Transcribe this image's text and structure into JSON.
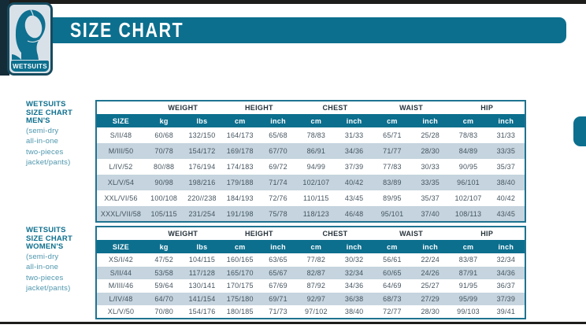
{
  "header": {
    "title": "SIZE CHART",
    "logo": {
      "label": "WETSUITS",
      "icon": "wetsuit-hood-icon"
    }
  },
  "colors": {
    "accent_teal": "#0c6f8e",
    "row_stripe": "#c5d4de",
    "rule_black": "#1d1d1b",
    "badge_fill": "#d9e1e8"
  },
  "sections": [
    {
      "title_lines": [
        "WETSUITS",
        "SIZE CHART",
        "MEN'S"
      ],
      "subtitle_lines": [
        "(semi-dry",
        "all-in-one",
        "two-pieces",
        "jacket/pants)"
      ],
      "table": {
        "group_headers": [
          {
            "label": "",
            "span": 1
          },
          {
            "label": "WEIGHT",
            "span": 2
          },
          {
            "label": "HEIGHT",
            "span": 2
          },
          {
            "label": "CHEST",
            "span": 2
          },
          {
            "label": "WAIST",
            "span": 2
          },
          {
            "label": "HIP",
            "span": 2
          }
        ],
        "columns": [
          "SIZE",
          "kg",
          "lbs",
          "cm",
          "inch",
          "cm",
          "inch",
          "cm",
          "inch",
          "cm",
          "inch"
        ],
        "rows": [
          [
            "S/II/48",
            "60/68",
            "132/150",
            "164/173",
            "65/68",
            "78/83",
            "31/33",
            "65/71",
            "25/28",
            "78/83",
            "31/33"
          ],
          [
            "M/III/50",
            "70/78",
            "154/172",
            "169/178",
            "67/70",
            "86/91",
            "34/36",
            "71/77",
            "28/30",
            "84/89",
            "33/35"
          ],
          [
            "L/IV/52",
            "80//88",
            "176/194",
            "174/183",
            "69/72",
            "94/99",
            "37/39",
            "77/83",
            "30/33",
            "90/95",
            "35/37"
          ],
          [
            "XL/V/54",
            "90/98",
            "198/216",
            "179/188",
            "71/74",
            "102/107",
            "40/42",
            "83/89",
            "33/35",
            "96/101",
            "38/40"
          ],
          [
            "XXL/VI/56",
            "100/108",
            "220//238",
            "184/193",
            "72/76",
            "110/115",
            "43/45",
            "89/95",
            "35/37",
            "102/107",
            "40/42"
          ],
          [
            "XXXL/VII/58",
            "105/115",
            "231/254",
            "191/198",
            "75/78",
            "118/123",
            "46/48",
            "95/101",
            "37/40",
            "108/113",
            "43/45"
          ]
        ]
      }
    },
    {
      "title_lines": [
        "WETSUITS",
        "SIZE CHART",
        "WOMEN'S"
      ],
      "subtitle_lines": [
        "(semi-dry",
        "all-in-one",
        "two-pieces",
        "jacket/pants)"
      ],
      "table": {
        "group_headers": [
          {
            "label": "",
            "span": 1
          },
          {
            "label": "WEIGHT",
            "span": 2
          },
          {
            "label": "HEIGHT",
            "span": 2
          },
          {
            "label": "CHEST",
            "span": 2
          },
          {
            "label": "WAIST",
            "span": 2
          },
          {
            "label": "HIP",
            "span": 2
          }
        ],
        "columns": [
          "SIZE",
          "kg",
          "lbs",
          "cm",
          "inch",
          "cm",
          "inch",
          "cm",
          "inch",
          "cm",
          "inch"
        ],
        "rows": [
          [
            "XS/I/42",
            "47/52",
            "104/115",
            "160/165",
            "63/65",
            "77/82",
            "30/32",
            "56/61",
            "22/24",
            "83/87",
            "32/34"
          ],
          [
            "S/II/44",
            "53/58",
            "117/128",
            "165/170",
            "65/67",
            "82/87",
            "32/34",
            "60/65",
            "24/26",
            "87/91",
            "34/36"
          ],
          [
            "M/III/46",
            "59/64",
            "130/141",
            "170/175",
            "67/69",
            "87/92",
            "34/36",
            "64/69",
            "25/27",
            "91/95",
            "36/37"
          ],
          [
            "L/IV/48",
            "64/70",
            "141/154",
            "175/180",
            "69/71",
            "92/97",
            "36/38",
            "68/73",
            "27/29",
            "95/99",
            "37/39"
          ],
          [
            "XL/V/50",
            "70/80",
            "154/176",
            "180/185",
            "71/73",
            "97/102",
            "38/40",
            "72/77",
            "28/30",
            "99/103",
            "39/41"
          ]
        ]
      }
    }
  ]
}
